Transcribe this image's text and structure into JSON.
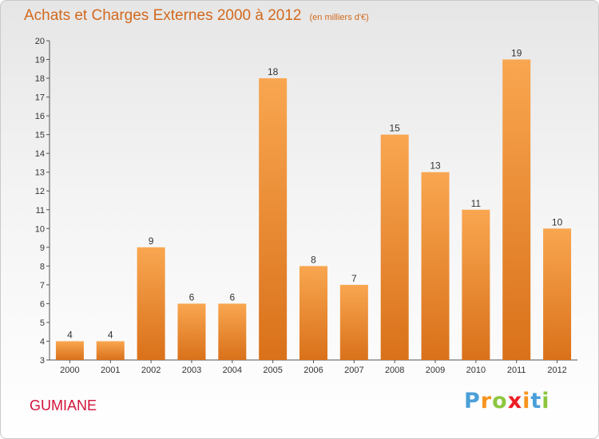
{
  "title": "Achats et Charges Externes 2000 à 2012",
  "unit": "(en milliers d'€)",
  "commune": "GUMIANE",
  "logo": [
    "P",
    "r",
    "o",
    "x",
    "i",
    "t",
    "i"
  ],
  "colors": {
    "bar_light": "#f9a650",
    "bar_dark": "#d9711a",
    "title": "#d2691e",
    "commune": "#d2143a"
  },
  "chart_data": {
    "type": "bar",
    "title": "Achats et Charges Externes 2000 à 2012",
    "subtitle": "(en milliers d'€)",
    "xlabel": "",
    "ylabel": "",
    "ylim": [
      3,
      20
    ],
    "y_ticks": [
      3,
      4,
      5,
      6,
      7,
      8,
      9,
      10,
      11,
      12,
      13,
      14,
      15,
      16,
      17,
      18,
      19,
      20
    ],
    "grid": false,
    "categories": [
      "2000",
      "2001",
      "2002",
      "2003",
      "2004",
      "2005",
      "2006",
      "2007",
      "2008",
      "2009",
      "2010",
      "2011",
      "2012"
    ],
    "values": [
      4,
      4,
      9,
      6,
      6,
      18,
      8,
      7,
      15,
      13,
      11,
      19,
      10
    ]
  }
}
